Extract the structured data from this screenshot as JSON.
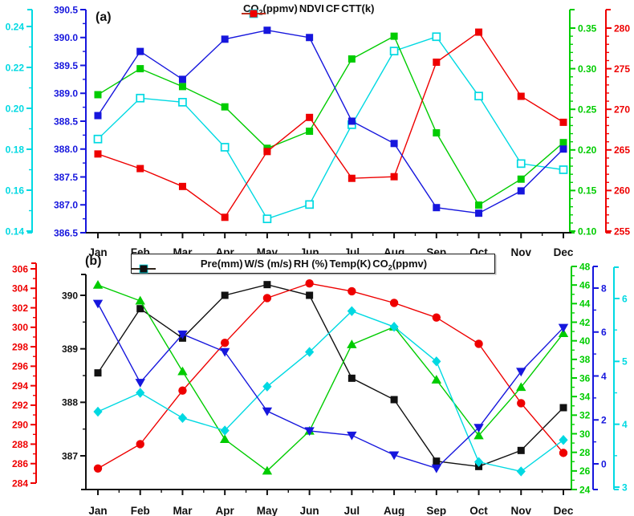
{
  "figure": {
    "background": "#ffffff",
    "months": [
      "Jan",
      "Feb",
      "Mar",
      "Apr",
      "May",
      "Jun",
      "Jul",
      "Aug",
      "Sep",
      "Oct",
      "Nov",
      "Dec"
    ]
  },
  "colors": {
    "blue": "#1616dd",
    "cyan": "#00d9e2",
    "green": "#00cc00",
    "red": "#ee0000",
    "black": "#111111"
  },
  "chart_data": [
    {
      "id": "panel-a",
      "type": "line",
      "panel_label": "(a)",
      "title": "",
      "xlabel": "",
      "grid": false,
      "legend_position": "top",
      "categories": [
        "Jan",
        "Feb",
        "Mar",
        "Apr",
        "May",
        "Jun",
        "Jul",
        "Aug",
        "Sep",
        "Oct",
        "Nov",
        "Dec"
      ],
      "legend": [
        {
          "label": "CO2(ppmv)",
          "color": "#1616dd",
          "marker": "square"
        },
        {
          "label": "NDVI",
          "color": "#00d9e2",
          "marker": "open-square"
        },
        {
          "label": "CF",
          "color": "#00cc00",
          "marker": "square"
        },
        {
          "label": "CTT(k)",
          "color": "#ee0000",
          "marker": "square"
        }
      ],
      "axes": [
        {
          "id": "ndvi",
          "color": "#00d9e2",
          "side": "left",
          "tick_min": 0.14,
          "tick_max": 0.24,
          "tick_step": 0.02,
          "minor_step": 0.01,
          "decimals": 2
        },
        {
          "id": "co2a",
          "color": "#1616dd",
          "side": "left",
          "tick_min": 386.5,
          "tick_max": 390.5,
          "tick_step": 0.5,
          "minor_step": 0.25,
          "decimals": 1
        },
        {
          "id": "cf",
          "color": "#00cc00",
          "side": "right",
          "tick_min": 0.1,
          "tick_max": 0.35,
          "tick_step": 0.05,
          "minor_step": 0.01,
          "decimals": 2
        },
        {
          "id": "ctt",
          "color": "#ee0000",
          "side": "right",
          "tick_min": 255,
          "tick_max": 280,
          "tick_step": 5,
          "minor_step": 1,
          "decimals": 0
        }
      ],
      "series": [
        {
          "name": "NDVI",
          "axis": "ndvi",
          "color": "#00d9e2",
          "marker": "open-square",
          "values": [
            0.185,
            0.205,
            0.203,
            0.181,
            0.146,
            0.153,
            0.192,
            0.228,
            0.235,
            0.206,
            0.173,
            0.17
          ]
        },
        {
          "name": "CF",
          "axis": "cf",
          "color": "#00cc00",
          "marker": "square",
          "values": [
            0.268,
            0.3,
            0.278,
            0.253,
            0.202,
            0.223,
            0.312,
            0.34,
            0.221,
            0.132,
            0.164,
            0.209
          ]
        },
        {
          "name": "CTT(k)",
          "axis": "ctt",
          "color": "#ee0000",
          "marker": "square",
          "values": [
            264.5,
            262.7,
            260.5,
            256.7,
            264.8,
            269.0,
            261.5,
            261.7,
            275.8,
            279.5,
            271.6,
            268.4
          ]
        },
        {
          "name": "CO2(ppmv)",
          "axis": "co2a",
          "color": "#1616dd",
          "marker": "square",
          "values": [
            388.6,
            389.75,
            389.25,
            389.97,
            390.13,
            390.0,
            388.5,
            388.1,
            386.95,
            386.85,
            387.25,
            388.0
          ]
        }
      ]
    },
    {
      "id": "panel-b",
      "type": "line",
      "panel_label": "(b)",
      "title": "",
      "xlabel": "",
      "grid": false,
      "legend_position": "top-boxed",
      "categories": [
        "Jan",
        "Feb",
        "Mar",
        "Apr",
        "May",
        "Jun",
        "Jul",
        "Aug",
        "Sep",
        "Oct",
        "Nov",
        "Dec"
      ],
      "legend": [
        {
          "label": "Pre(mm)",
          "color": "#1616dd",
          "marker": "square"
        },
        {
          "label": "W/S (m/s)",
          "color": "#00d9e2",
          "marker": "open-square"
        },
        {
          "label": "RH (%)",
          "color": "#00cc00",
          "marker": "square"
        },
        {
          "label": "Temp(K)",
          "color": "#ee0000",
          "marker": "square"
        },
        {
          "label": "CO2(ppmv)",
          "color": "#111111",
          "marker": "square"
        }
      ],
      "axes": [
        {
          "id": "tempb",
          "color": "#ee0000",
          "side": "left",
          "tick_min": 284,
          "tick_max": 306,
          "tick_step": 2,
          "minor_step": 1,
          "decimals": 0
        },
        {
          "id": "co2b",
          "color": "#111111",
          "side": "left",
          "tick_min": 387,
          "tick_max": 390,
          "tick_step": 1,
          "minor_step": 0.5,
          "decimals": 0
        },
        {
          "id": "rh",
          "color": "#00cc00",
          "side": "right",
          "tick_min": 24,
          "tick_max": 48,
          "tick_step": 2,
          "minor_step": 1,
          "decimals": 0
        },
        {
          "id": "pre",
          "color": "#1616dd",
          "side": "right",
          "tick_min": 0,
          "tick_max": 8,
          "tick_step": 2,
          "minor_step": 1,
          "decimals": 0
        },
        {
          "id": "ws",
          "color": "#00d9e2",
          "side": "right",
          "tick_min": 3,
          "tick_max": 6,
          "tick_step": 1,
          "minor_step": 0.5,
          "decimals": 0
        }
      ],
      "series": [
        {
          "name": "CO2(ppmv)",
          "axis": "co2b",
          "color": "#111111",
          "marker": "square",
          "values": [
            388.55,
            389.75,
            389.2,
            390.0,
            390.2,
            390.0,
            388.45,
            388.05,
            386.9,
            386.8,
            387.1,
            387.9
          ]
        },
        {
          "name": "Temp(K)",
          "axis": "tempb",
          "color": "#ee0000",
          "marker": "circle",
          "values": [
            285.5,
            288.0,
            293.5,
            298.4,
            303.0,
            304.5,
            303.7,
            302.5,
            301.0,
            298.3,
            292.2,
            287.1
          ]
        },
        {
          "name": "RH (%)",
          "axis": "rh",
          "color": "#00cc00",
          "marker": "triangle-up",
          "values": [
            46.0,
            44.3,
            36.7,
            29.4,
            26.0,
            30.3,
            39.6,
            41.5,
            35.8,
            29.8,
            35.0,
            40.8
          ]
        },
        {
          "name": "W/S (m/s)",
          "axis": "ws",
          "color": "#00d9e2",
          "marker": "diamond",
          "values": [
            4.2,
            4.5,
            4.1,
            3.9,
            4.6,
            5.15,
            5.8,
            5.55,
            5.0,
            3.4,
            3.25,
            3.75
          ]
        },
        {
          "name": "Pre(mm)",
          "axis": "pre",
          "color": "#1616dd",
          "marker": "triangle-down",
          "values": [
            7.3,
            3.7,
            5.9,
            5.1,
            2.4,
            1.5,
            1.3,
            0.4,
            -0.2,
            1.65,
            4.2,
            6.2
          ]
        }
      ]
    }
  ]
}
